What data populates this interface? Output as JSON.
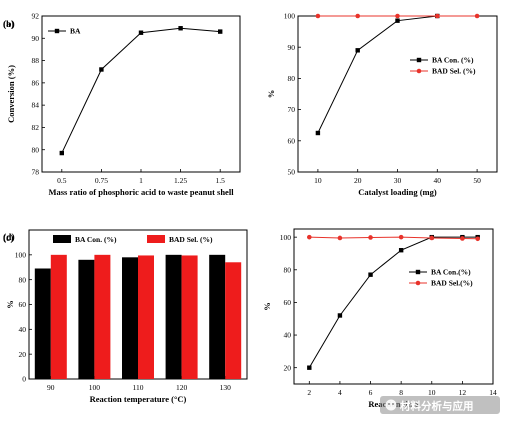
{
  "watermark": {
    "text": "材料分析与应用",
    "icon": "wechat-icon"
  },
  "chart_data": [
    {
      "type": "line",
      "panel_label": "(a)",
      "xlabel": "Mass ratio of phosphoric acid to waste peanut shell",
      "ylabel": "Conversion (%)",
      "x": [
        0.5,
        0.75,
        1,
        1.25,
        1.5
      ],
      "xtick_labels": [
        "0.5",
        "0.75",
        "1",
        "1.25",
        "1.5"
      ],
      "xlim": [
        0.375,
        1.625
      ],
      "ylim": [
        78,
        92
      ],
      "yticks": [
        78,
        80,
        82,
        84,
        86,
        88,
        90,
        92
      ],
      "legend_position": "top-left",
      "series": [
        {
          "name": "BA",
          "color": "#000000",
          "marker": "square",
          "values": [
            79.7,
            87.2,
            90.5,
            90.9,
            90.6
          ]
        }
      ]
    },
    {
      "type": "line",
      "panel_label": "(b)",
      "xlabel": "Catalyst loading (mg)",
      "ylabel": "%",
      "x": [
        10,
        20,
        30,
        40,
        50
      ],
      "xticks": [
        10,
        20,
        30,
        40,
        50
      ],
      "xlim": [
        5,
        55
      ],
      "ylim": [
        50,
        100
      ],
      "yticks": [
        50,
        60,
        70,
        80,
        90,
        100
      ],
      "legend_position": "right",
      "series": [
        {
          "name": "BA Con. (%)",
          "color": "#000000",
          "marker": "square",
          "x": [
            10,
            20,
            30,
            40
          ],
          "values": [
            62.5,
            89,
            98.5,
            100
          ]
        },
        {
          "name": "BAD Sel. (%)",
          "color": "#e8332b",
          "marker": "circle",
          "x": [
            10,
            20,
            30,
            40,
            50
          ],
          "values": [
            100,
            100,
            100,
            100,
            100
          ]
        }
      ]
    },
    {
      "type": "bar",
      "panel_label": "(c)",
      "xlabel": "Reaction temperature (°C)",
      "ylabel": "%",
      "categories": [
        "90",
        "100",
        "110",
        "120",
        "130"
      ],
      "ylim": [
        0,
        120
      ],
      "yticks": [
        0,
        20,
        40,
        60,
        80,
        100
      ],
      "legend_position": "top",
      "series": [
        {
          "name": "BA Con. (%)",
          "color": "#000000",
          "values": [
            89,
            96,
            98,
            100,
            100
          ]
        },
        {
          "name": "BAD Sel. (%)",
          "color": "#ee1c1c",
          "values": [
            100,
            100,
            99.5,
            99.5,
            94
          ]
        }
      ]
    },
    {
      "type": "line",
      "panel_label": "(d)",
      "xlabel": "Reaction time",
      "ylabel": "%",
      "xlim": [
        1,
        14
      ],
      "xticks": [
        2,
        4,
        6,
        8,
        10,
        12,
        14
      ],
      "ylim": [
        10,
        105
      ],
      "yticks": [
        20,
        40,
        60,
        80,
        100
      ],
      "legend_position": "right",
      "series": [
        {
          "name": "BA Con.(%)",
          "color": "#000000",
          "marker": "square",
          "x": [
            2,
            4,
            6,
            8,
            10,
            12,
            13
          ],
          "values": [
            20,
            52,
            77,
            92,
            100,
            100,
            100
          ]
        },
        {
          "name": "BAD Sel.(%)",
          "color": "#e8332b",
          "marker": "circle",
          "x": [
            2,
            4,
            6,
            8,
            10,
            12,
            13
          ],
          "values": [
            100,
            99.5,
            99.8,
            100,
            99.5,
            99.2,
            99
          ]
        }
      ]
    }
  ]
}
